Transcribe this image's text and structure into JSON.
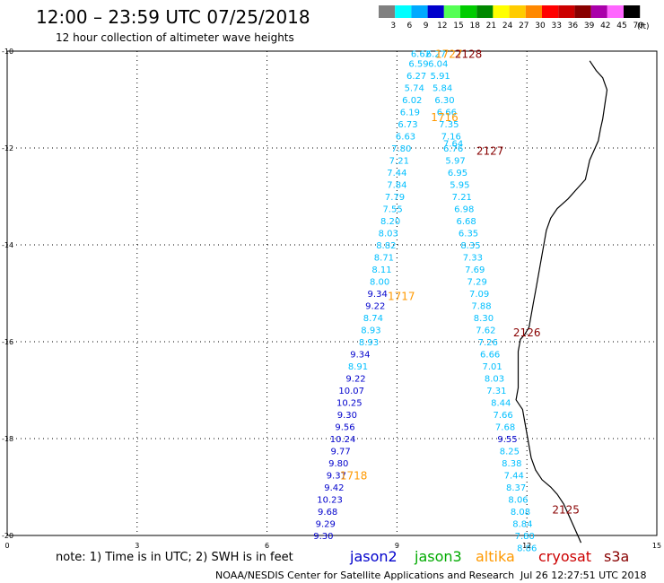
{
  "header": {
    "title": "12:00 – 23:59 UTC 07/25/2018",
    "subtitle": "12 hour collection of altimeter wave heights"
  },
  "legend": {
    "unit": "(ft)",
    "bins": [
      {
        "label": "3",
        "color": "#808080"
      },
      {
        "label": "6",
        "color": "#00ffff"
      },
      {
        "label": "9",
        "color": "#00aaff"
      },
      {
        "label": "12",
        "color": "#0000cc"
      },
      {
        "label": "15",
        "color": "#55ff55"
      },
      {
        "label": "18",
        "color": "#00cc00"
      },
      {
        "label": "21",
        "color": "#008800"
      },
      {
        "label": "24",
        "color": "#ffff00"
      },
      {
        "label": "27",
        "color": "#ffcc00"
      },
      {
        "label": "30",
        "color": "#ff8800"
      },
      {
        "label": "33",
        "color": "#ff0000"
      },
      {
        "label": "36",
        "color": "#cc0000"
      },
      {
        "label": "39",
        "color": "#880000"
      },
      {
        "label": "42",
        "color": "#aa00aa"
      },
      {
        "label": "45",
        "color": "#ff66ff"
      },
      {
        "label": "70",
        "color": "#000000"
      }
    ]
  },
  "footer": {
    "note": "note: 1) Time is in UTC; 2) SWH is in feet",
    "credit": "NOAA/NESDIS Center for Satellite Applications and Research",
    "timestamp": "Jul 26 12:27:51 UTC 2018",
    "satellites": [
      {
        "name": "jason2",
        "color": "#0000cc"
      },
      {
        "name": "jason3",
        "color": "#00aa00"
      },
      {
        "name": "altika",
        "color": "#ff9900"
      },
      {
        "name": "cryosat",
        "color": "#cc0000"
      },
      {
        "name": "s3a",
        "color": "#880000"
      }
    ]
  },
  "chart_data": {
    "type": "map",
    "x_ticks": [
      "0",
      "3",
      "6",
      "9",
      "12",
      "15"
    ],
    "y_ticks": [
      "-10",
      "-12",
      "-14",
      "-16",
      "-18",
      "-20"
    ],
    "xlim": [
      0,
      15
    ],
    "ylim": [
      -20,
      -10
    ],
    "grid": true,
    "swh_labels": [
      {
        "text": "6.62",
        "lon": 9.55,
        "lat": -10.05,
        "color": "#00bfff"
      },
      {
        "text": "6.59",
        "lon": 9.5,
        "lat": -10.25,
        "color": "#00bfff"
      },
      {
        "text": "6.27",
        "lon": 9.45,
        "lat": -10.5,
        "color": "#00bfff"
      },
      {
        "text": "5.74",
        "lon": 9.4,
        "lat": -10.75,
        "color": "#00bfff"
      },
      {
        "text": "6.02",
        "lon": 9.35,
        "lat": -11.0,
        "color": "#00bfff"
      },
      {
        "text": "6.19",
        "lon": 9.3,
        "lat": -11.25,
        "color": "#00bfff"
      },
      {
        "text": "6.73",
        "lon": 9.25,
        "lat": -11.5,
        "color": "#00bfff"
      },
      {
        "text": "6.63",
        "lon": 9.2,
        "lat": -11.75,
        "color": "#00bfff"
      },
      {
        "text": "7.80",
        "lon": 9.1,
        "lat": -12.0,
        "color": "#00bfff"
      },
      {
        "text": "7.21",
        "lon": 9.05,
        "lat": -12.25,
        "color": "#00bfff"
      },
      {
        "text": "7.44",
        "lon": 9.0,
        "lat": -12.5,
        "color": "#00bfff"
      },
      {
        "text": "7.84",
        "lon": 9.0,
        "lat": -12.75,
        "color": "#00bfff"
      },
      {
        "text": "7.79",
        "lon": 8.95,
        "lat": -13.0,
        "color": "#00bfff"
      },
      {
        "text": "7.55",
        "lon": 8.9,
        "lat": -13.25,
        "color": "#00bfff"
      },
      {
        "text": "8.20",
        "lon": 8.85,
        "lat": -13.5,
        "color": "#00bfff"
      },
      {
        "text": "8.03",
        "lon": 8.8,
        "lat": -13.75,
        "color": "#00bfff"
      },
      {
        "text": "8.82",
        "lon": 8.75,
        "lat": -14.0,
        "color": "#00bfff"
      },
      {
        "text": "8.71",
        "lon": 8.7,
        "lat": -14.25,
        "color": "#00bfff"
      },
      {
        "text": "8.11",
        "lon": 8.65,
        "lat": -14.5,
        "color": "#00bfff"
      },
      {
        "text": "8.00",
        "lon": 8.6,
        "lat": -14.75,
        "color": "#00bfff"
      },
      {
        "text": "9.34",
        "lon": 8.55,
        "lat": -15.0,
        "color": "#0000cc"
      },
      {
        "text": "9.22",
        "lon": 8.5,
        "lat": -15.25,
        "color": "#0000cc"
      },
      {
        "text": "8.74",
        "lon": 8.45,
        "lat": -15.5,
        "color": "#00bfff"
      },
      {
        "text": "8.93",
        "lon": 8.4,
        "lat": -15.75,
        "color": "#00bfff"
      },
      {
        "text": "8.93",
        "lon": 8.35,
        "lat": -16.0,
        "color": "#00bfff"
      },
      {
        "text": "9.34",
        "lon": 8.15,
        "lat": -16.25,
        "color": "#0000cc"
      },
      {
        "text": "8.91",
        "lon": 8.1,
        "lat": -16.5,
        "color": "#00bfff"
      },
      {
        "text": "9.22",
        "lon": 8.05,
        "lat": -16.75,
        "color": "#0000cc"
      },
      {
        "text": "10.07",
        "lon": 7.95,
        "lat": -17.0,
        "color": "#0000cc"
      },
      {
        "text": "10.25",
        "lon": 7.9,
        "lat": -17.25,
        "color": "#0000cc"
      },
      {
        "text": "9.30",
        "lon": 7.85,
        "lat": -17.5,
        "color": "#0000cc"
      },
      {
        "text": "9.56",
        "lon": 7.8,
        "lat": -17.75,
        "color": "#0000cc"
      },
      {
        "text": "10.24",
        "lon": 7.75,
        "lat": -18.0,
        "color": "#0000cc"
      },
      {
        "text": "9.77",
        "lon": 7.7,
        "lat": -18.25,
        "color": "#0000cc"
      },
      {
        "text": "9.80",
        "lon": 7.65,
        "lat": -18.5,
        "color": "#0000cc"
      },
      {
        "text": "9.37",
        "lon": 7.6,
        "lat": -18.75,
        "color": "#0000cc"
      },
      {
        "text": "9.42",
        "lon": 7.55,
        "lat": -19.0,
        "color": "#0000cc"
      },
      {
        "text": "10.23",
        "lon": 7.45,
        "lat": -19.25,
        "color": "#0000cc"
      },
      {
        "text": "9.68",
        "lon": 7.4,
        "lat": -19.5,
        "color": "#0000cc"
      },
      {
        "text": "9.29",
        "lon": 7.35,
        "lat": -19.75,
        "color": "#0000cc"
      },
      {
        "text": "9.30",
        "lon": 7.3,
        "lat": -20.0,
        "color": "#0000cc"
      },
      {
        "text": "6.27",
        "lon": 9.9,
        "lat": -10.05,
        "color": "#00bfff"
      },
      {
        "text": "6.04",
        "lon": 9.95,
        "lat": -10.25,
        "color": "#00bfff"
      },
      {
        "text": "5.91",
        "lon": 10.0,
        "lat": -10.5,
        "color": "#00bfff"
      },
      {
        "text": "5.84",
        "lon": 10.05,
        "lat": -10.75,
        "color": "#00bfff"
      },
      {
        "text": "6.30",
        "lon": 10.1,
        "lat": -11.0,
        "color": "#00bfff"
      },
      {
        "text": "6.66",
        "lon": 10.15,
        "lat": -11.25,
        "color": "#00bfff"
      },
      {
        "text": "7.35",
        "lon": 10.2,
        "lat": -11.5,
        "color": "#00bfff"
      },
      {
        "text": "7.16",
        "lon": 10.25,
        "lat": -11.75,
        "color": "#00bfff"
      },
      {
        "text": "7.64",
        "lon": 10.3,
        "lat": -11.9,
        "color": "#00bfff"
      },
      {
        "text": "6.76",
        "lon": 10.3,
        "lat": -12.0,
        "color": "#00bfff"
      },
      {
        "text": "5.97",
        "lon": 10.35,
        "lat": -12.25,
        "color": "#00bfff"
      },
      {
        "text": "6.95",
        "lon": 10.4,
        "lat": -12.5,
        "color": "#00bfff"
      },
      {
        "text": "5.95",
        "lon": 10.45,
        "lat": -12.75,
        "color": "#00bfff"
      },
      {
        "text": "7.21",
        "lon": 10.5,
        "lat": -13.0,
        "color": "#00bfff"
      },
      {
        "text": "6.98",
        "lon": 10.55,
        "lat": -13.25,
        "color": "#00bfff"
      },
      {
        "text": "6.68",
        "lon": 10.6,
        "lat": -13.5,
        "color": "#00bfff"
      },
      {
        "text": "6.35",
        "lon": 10.65,
        "lat": -13.75,
        "color": "#00bfff"
      },
      {
        "text": "8.35",
        "lon": 10.7,
        "lat": -14.0,
        "color": "#00bfff"
      },
      {
        "text": "7.33",
        "lon": 10.75,
        "lat": -14.25,
        "color": "#00bfff"
      },
      {
        "text": "7.69",
        "lon": 10.8,
        "lat": -14.5,
        "color": "#00bfff"
      },
      {
        "text": "7.29",
        "lon": 10.85,
        "lat": -14.75,
        "color": "#00bfff"
      },
      {
        "text": "7.09",
        "lon": 10.9,
        "lat": -15.0,
        "color": "#00bfff"
      },
      {
        "text": "7.88",
        "lon": 10.95,
        "lat": -15.25,
        "color": "#00bfff"
      },
      {
        "text": "8.30",
        "lon": 11.0,
        "lat": -15.5,
        "color": "#00bfff"
      },
      {
        "text": "7.62",
        "lon": 11.05,
        "lat": -15.75,
        "color": "#00bfff"
      },
      {
        "text": "7.26",
        "lon": 11.1,
        "lat": -16.0,
        "color": "#00bfff"
      },
      {
        "text": "6.66",
        "lon": 11.15,
        "lat": -16.25,
        "color": "#00bfff"
      },
      {
        "text": "7.01",
        "lon": 11.2,
        "lat": -16.5,
        "color": "#00bfff"
      },
      {
        "text": "8.03",
        "lon": 11.25,
        "lat": -16.75,
        "color": "#00bfff"
      },
      {
        "text": "7.31",
        "lon": 11.3,
        "lat": -17.0,
        "color": "#00bfff"
      },
      {
        "text": "8.44",
        "lon": 11.4,
        "lat": -17.25,
        "color": "#00bfff"
      },
      {
        "text": "7.66",
        "lon": 11.45,
        "lat": -17.5,
        "color": "#00bfff"
      },
      {
        "text": "7.68",
        "lon": 11.5,
        "lat": -17.75,
        "color": "#00bfff"
      },
      {
        "text": "9.55",
        "lon": 11.55,
        "lat": -18.0,
        "color": "#0000cc"
      },
      {
        "text": "8.25",
        "lon": 11.6,
        "lat": -18.25,
        "color": "#00bfff"
      },
      {
        "text": "8.38",
        "lon": 11.65,
        "lat": -18.5,
        "color": "#00bfff"
      },
      {
        "text": "7.44",
        "lon": 11.7,
        "lat": -18.75,
        "color": "#00bfff"
      },
      {
        "text": "8.37",
        "lon": 11.75,
        "lat": -19.0,
        "color": "#00bfff"
      },
      {
        "text": "8.06",
        "lon": 11.8,
        "lat": -19.25,
        "color": "#00bfff"
      },
      {
        "text": "8.08",
        "lon": 11.85,
        "lat": -19.5,
        "color": "#00bfff"
      },
      {
        "text": "8.84",
        "lon": 11.9,
        "lat": -19.75,
        "color": "#00bfff"
      },
      {
        "text": "7.80",
        "lon": 11.95,
        "lat": -20.0,
        "color": "#00bfff"
      },
      {
        "text": "8.86",
        "lon": 12.0,
        "lat": -20.25,
        "color": "#00bfff"
      }
    ],
    "pass_labels": [
      {
        "text": "1727",
        "lon": 10.2,
        "lat": -10.05,
        "color": "#ff9900"
      },
      {
        "text": "2128",
        "lon": 10.65,
        "lat": -10.05,
        "color": "#880000"
      },
      {
        "text": "1716",
        "lon": 10.1,
        "lat": -11.35,
        "color": "#ff9900"
      },
      {
        "text": "2127",
        "lon": 11.15,
        "lat": -12.05,
        "color": "#880000"
      },
      {
        "text": "1717",
        "lon": 9.1,
        "lat": -15.05,
        "color": "#ff9900"
      },
      {
        "text": "2126",
        "lon": 12.0,
        "lat": -15.8,
        "color": "#880000"
      },
      {
        "text": "1718",
        "lon": 8.0,
        "lat": -18.75,
        "color": "#ff9900"
      },
      {
        "text": "2125",
        "lon": 12.9,
        "lat": -19.45,
        "color": "#880000"
      }
    ],
    "coastline": [
      [
        13.45,
        -10.2
      ],
      [
        13.6,
        -10.4
      ],
      [
        13.75,
        -10.55
      ],
      [
        13.85,
        -10.8
      ],
      [
        13.8,
        -11.1
      ],
      [
        13.75,
        -11.4
      ],
      [
        13.7,
        -11.6
      ],
      [
        13.65,
        -11.85
      ],
      [
        13.55,
        -12.05
      ],
      [
        13.45,
        -12.25
      ],
      [
        13.4,
        -12.45
      ],
      [
        13.35,
        -12.65
      ],
      [
        13.15,
        -12.85
      ],
      [
        12.95,
        -13.05
      ],
      [
        12.7,
        -13.25
      ],
      [
        12.55,
        -13.45
      ],
      [
        12.45,
        -13.7
      ],
      [
        12.4,
        -13.95
      ],
      [
        12.35,
        -14.2
      ],
      [
        12.3,
        -14.45
      ],
      [
        12.25,
        -14.7
      ],
      [
        12.2,
        -14.95
      ],
      [
        12.15,
        -15.2
      ],
      [
        12.1,
        -15.45
      ],
      [
        12.05,
        -15.7
      ],
      [
        11.95,
        -15.85
      ],
      [
        11.85,
        -15.95
      ],
      [
        11.8,
        -16.2
      ],
      [
        11.8,
        -16.45
      ],
      [
        11.8,
        -16.7
      ],
      [
        11.8,
        -16.95
      ],
      [
        11.75,
        -17.2
      ],
      [
        11.9,
        -17.4
      ],
      [
        11.95,
        -17.65
      ],
      [
        12.0,
        -17.9
      ],
      [
        12.05,
        -18.15
      ],
      [
        12.1,
        -18.4
      ],
      [
        12.2,
        -18.65
      ],
      [
        12.35,
        -18.85
      ],
      [
        12.55,
        -19.0
      ],
      [
        12.7,
        -19.15
      ],
      [
        12.85,
        -19.35
      ],
      [
        12.95,
        -19.55
      ],
      [
        13.05,
        -19.75
      ],
      [
        13.15,
        -19.95
      ],
      [
        13.25,
        -20.15
      ]
    ]
  }
}
